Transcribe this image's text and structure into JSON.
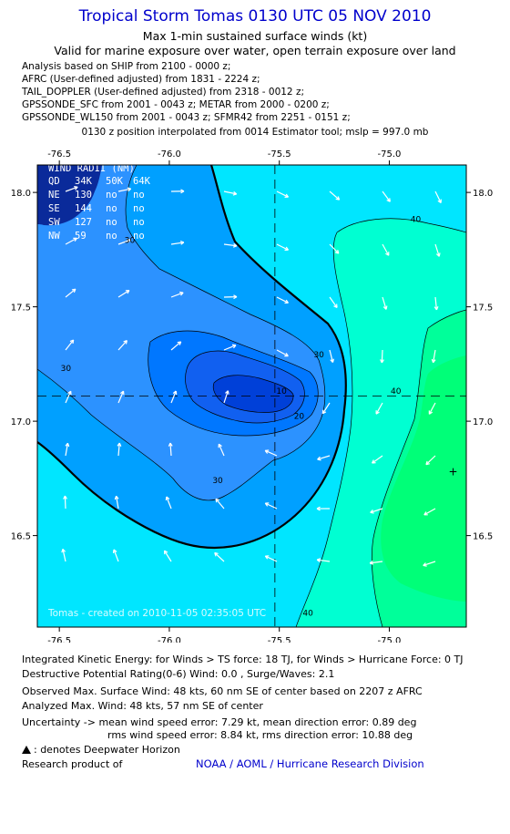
{
  "header": {
    "title": "Tropical Storm Tomas 0130 UTC 05 NOV 2010",
    "subtitle1": "Max 1-min sustained surface winds (kt)",
    "subtitle2": "Valid for marine exposure over water, open terrain exposure over land"
  },
  "sources": [
    "Analysis based on SHIP from 2100 - 0000 z;",
    "AFRC (User-defined adjusted) from 1831 - 2224 z;",
    "TAIL_DOPPLER (User-defined adjusted) from 2318 - 0012 z;",
    "GPSSONDE_SFC from 2001 - 0043 z; METAR from 2000 - 0200 z;",
    "GPSSONDE_WL150 from 2001 - 0043 z; SFMR42 from 2251 - 0151 z;"
  ],
  "interpolation_note": "0130 z position interpolated from 0014 Estimator tool; mslp = 997.0 mb",
  "wind_radii": {
    "title": "WIND RADII (NM)",
    "header": [
      "QD",
      "34K",
      "50K",
      "64K"
    ],
    "rows": [
      [
        "NE",
        "130",
        "no",
        "no"
      ],
      [
        "SE",
        "144",
        "no",
        "no"
      ],
      [
        "SW",
        "127",
        "no",
        "no"
      ],
      [
        "NW",
        "59",
        "no",
        "no"
      ]
    ]
  },
  "watermark": "Tomas - created on 2010-11-05 02:35:05 UTC",
  "footer": {
    "ike": "Integrated Kinetic Energy:  for Winds > TS force: 18 TJ,  for Winds > Hurricane Force: 0 TJ",
    "dpr": "Destructive Potential Rating(0-6)   Wind: 0.0 , Surge/Waves: 2.1",
    "obs": "Observed Max. Surface Wind: 48 kts, 60 nm SE of center based on 2207 z AFRC",
    "analyzed": "Analyzed Max. Wind: 48 kts, 57 nm SE of center",
    "uncert1": "Uncertainty -> mean wind speed error: 7.29 kt,   mean direction error: 0.89 deg",
    "uncert2": "rms wind speed error: 8.84 kt,   rms direction error: 10.88 deg",
    "dwh": ": denotes Deepwater Horizon",
    "research": "Research product of",
    "org": "NOAA / AOML / Hurricane Research Division"
  },
  "colors": {
    "title": "#0000cc",
    "levels": [
      "#00a0ff",
      "#2c92ff",
      "#0077ff",
      "#1160f0",
      "#0040d8",
      "#00e6ff",
      "#00ffd2",
      "#00ff9a",
      "#00ff78"
    ]
  },
  "chart_data": {
    "type": "heatmap",
    "subtype": "filled-contour wind field",
    "x_axis": {
      "range": [
        -76.6,
        -74.65
      ],
      "ticks": [
        -76.5,
        -76.0,
        -75.5,
        -75.0
      ],
      "tick_labels": [
        "-76.5",
        "-76.0",
        "-75.5",
        "-75.0"
      ]
    },
    "y_axis": {
      "range": [
        16.1,
        18.12
      ],
      "ticks": [
        16.5,
        17.0,
        17.5,
        18.0
      ],
      "tick_labels": [
        "16.5",
        "17.0",
        "17.5",
        "18.0"
      ]
    },
    "center": {
      "lon": -75.52,
      "lat": 17.11
    },
    "contour_labels": [
      {
        "text": "40",
        "lon": -74.88,
        "lat": 17.87
      },
      {
        "text": "40",
        "lon": -74.97,
        "lat": 17.12
      },
      {
        "text": "40",
        "lon": -75.37,
        "lat": 16.15
      },
      {
        "text": "30",
        "lon": -76.18,
        "lat": 17.78
      },
      {
        "text": "30",
        "lon": -75.32,
        "lat": 17.28
      },
      {
        "text": "30",
        "lon": -76.47,
        "lat": 17.22
      },
      {
        "text": "30",
        "lon": -75.78,
        "lat": 16.73
      },
      {
        "text": "20",
        "lon": -75.41,
        "lat": 17.01
      },
      {
        "text": "10",
        "lon": -75.49,
        "lat": 17.12
      }
    ],
    "max_wind_marker": {
      "lon": -74.71,
      "lat": 16.78
    }
  }
}
